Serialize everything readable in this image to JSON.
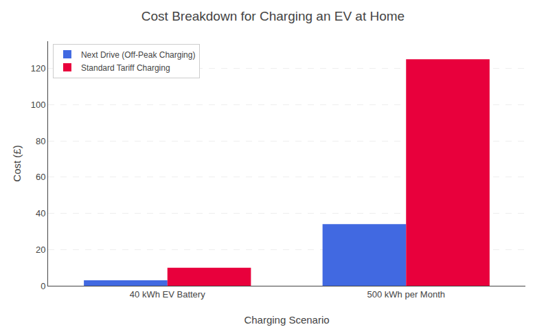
{
  "chart_data": {
    "type": "bar",
    "title": "Cost Breakdown for Charging an EV at Home",
    "xlabel": "Charging Scenario",
    "ylabel": "Cost (£)",
    "categories": [
      "40 kWh EV Battery",
      "500 kWh per Month"
    ],
    "series": [
      {
        "name": "Next Drive (Off-Peak Charging)",
        "color": "#4169E1",
        "values": [
          3.0,
          34.0
        ]
      },
      {
        "name": "Standard Tariff Charging",
        "color": "#E8003C",
        "values": [
          10.0,
          125.0
        ]
      }
    ],
    "ylim": [
      0,
      135
    ],
    "yticks": [
      0,
      20,
      40,
      60,
      80,
      100,
      120
    ],
    "grid": true,
    "legend": "upper left"
  }
}
